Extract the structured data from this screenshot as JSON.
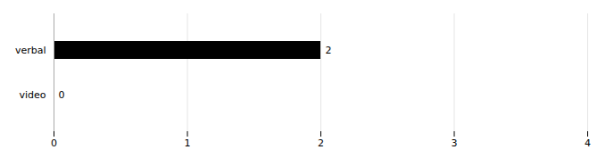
{
  "chart_data": {
    "type": "bar",
    "orientation": "horizontal",
    "categories": [
      "verbal",
      "video"
    ],
    "values": [
      2,
      0
    ],
    "color": "#000000",
    "xlim": [
      0,
      4
    ],
    "xticks": [
      0,
      1,
      2,
      3,
      4
    ],
    "grid": true,
    "data_labels": true
  }
}
